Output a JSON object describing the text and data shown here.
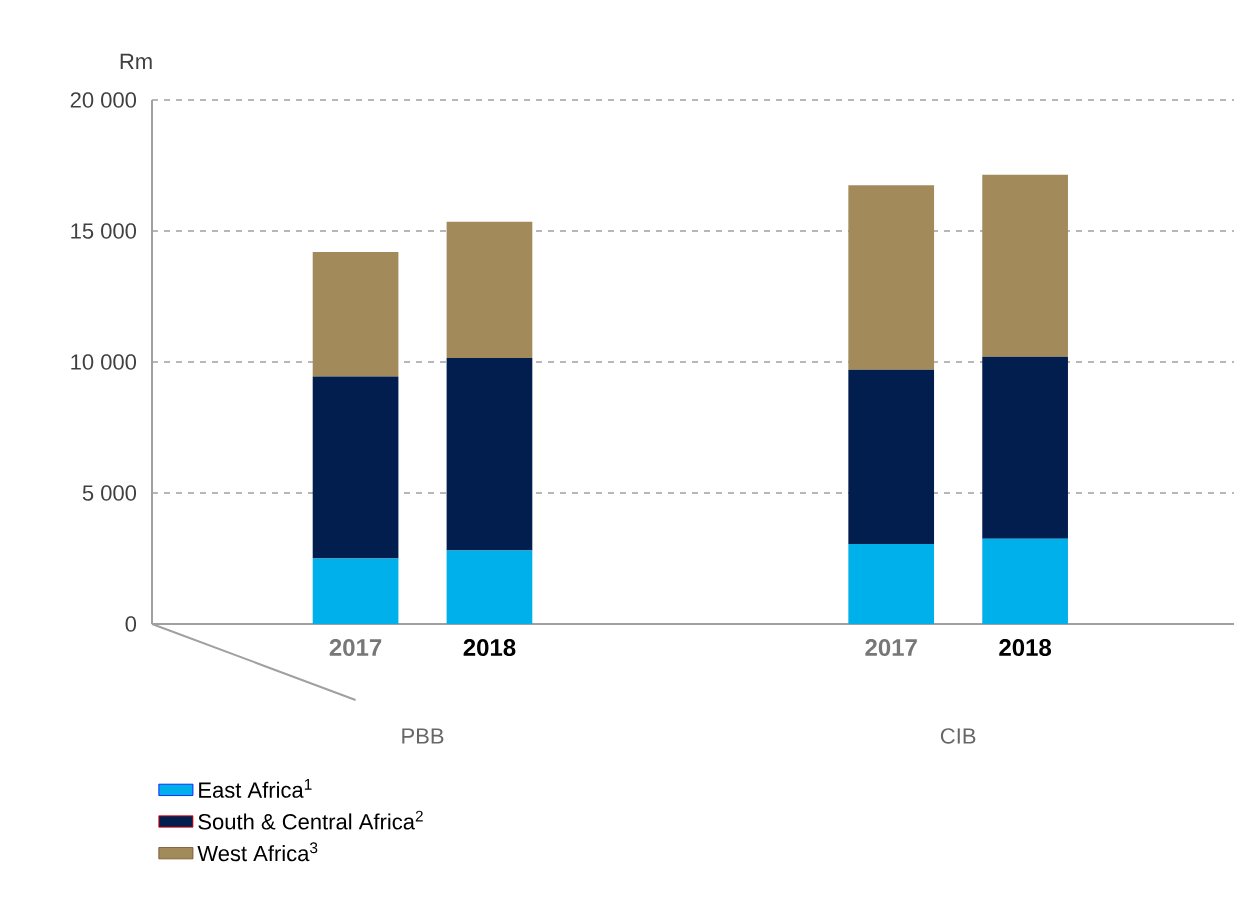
{
  "chart_data": {
    "type": "bar",
    "stacked": true,
    "ylabel": "Rm",
    "categories": [
      "2017",
      "2018",
      "2017",
      "2018"
    ],
    "annotations": [
      "PBB",
      "CIB"
    ],
    "series": [
      {
        "name": "East Africa$^{1}$",
        "color": "#00b0ea",
        "values": [
          2500,
          2800,
          3050,
          3250
        ]
      },
      {
        "name": "South & Central Africa$^{2}$",
        "color": "#021e4f",
        "values": [
          6950,
          7350,
          6650,
          6950
        ]
      },
      {
        "name": "West Africa$^{3}$",
        "color": "#a38a5a",
        "values": [
          4750,
          5200,
          7050,
          6950
        ]
      }
    ],
    "ylim": [
      0,
      20000
    ],
    "yticks": [
      0,
      {
        "value": 5000,
        "label": "5 000"
      },
      {
        "value": 10000,
        "label": "10 000"
      },
      {
        "value": 15000,
        "label": "15 000"
      },
      {
        "value": 20000,
        "label": "20 000"
      }
    ],
    "grid": "y",
    "legend": "bottom"
  }
}
